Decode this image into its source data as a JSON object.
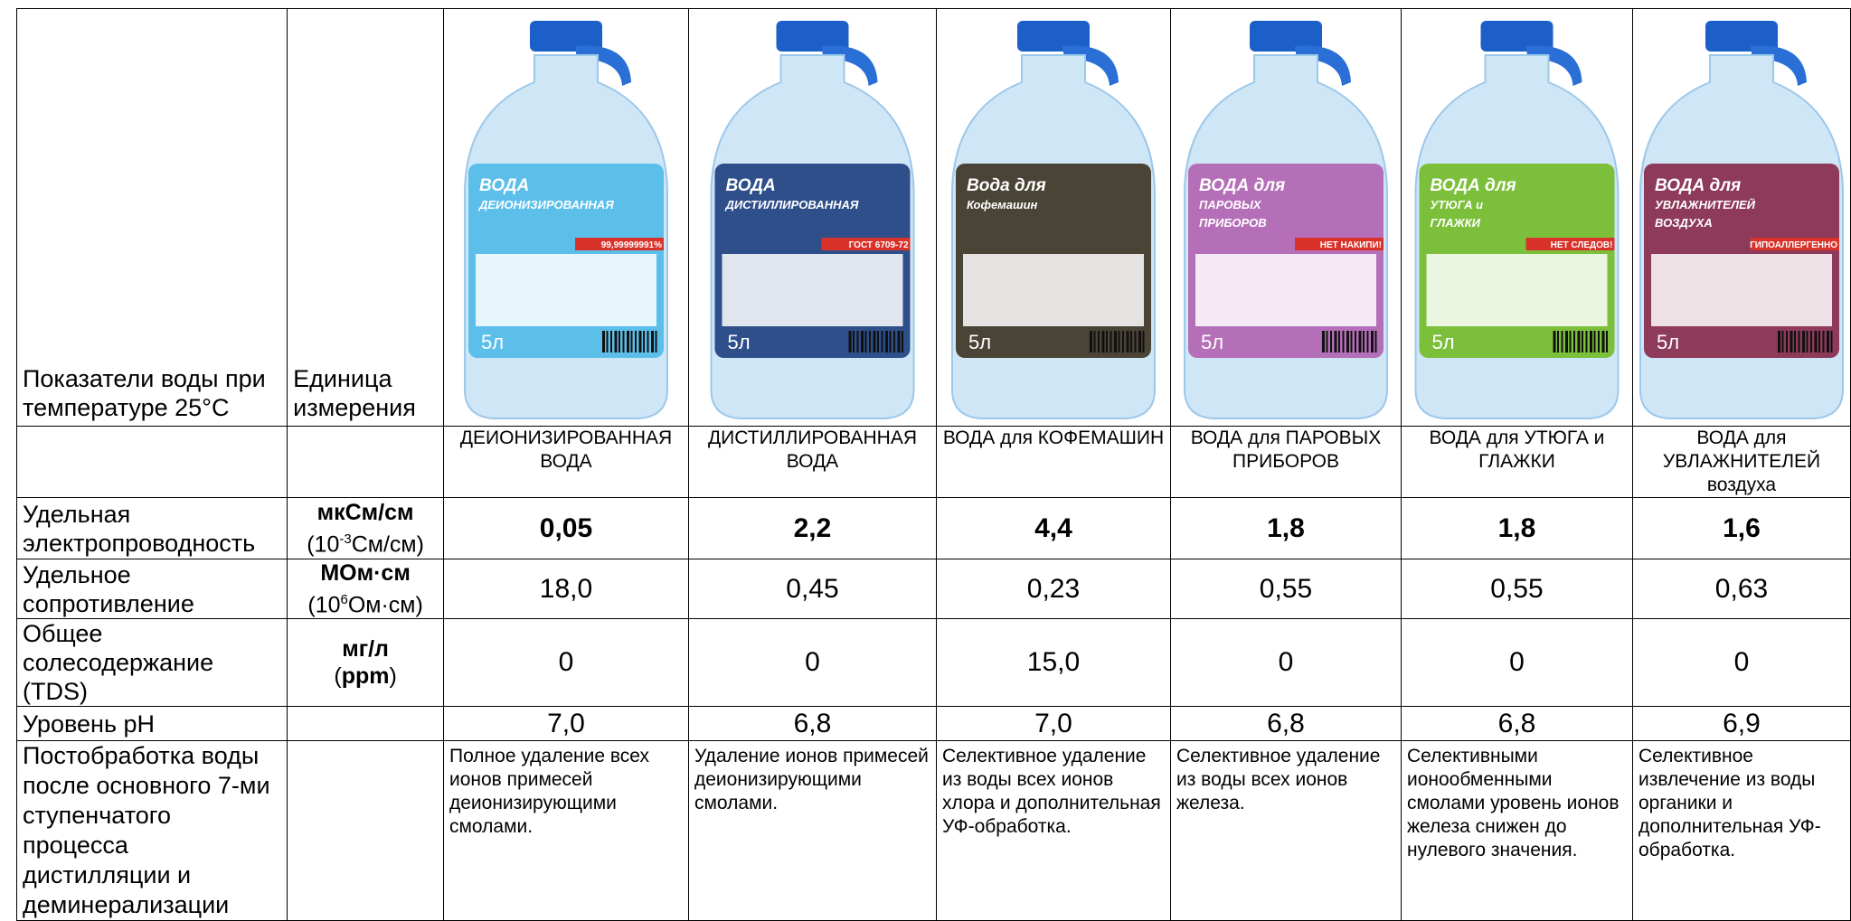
{
  "table": {
    "corner_label": "Показатели воды при температуре 25°C",
    "unit_header": "Единица измерения",
    "products": [
      {
        "name": "ДЕИОНИЗИРОВАННАЯ ВОДА",
        "label_lines": [
          "ВОДА",
          "ДЕИОНИЗИРОВАННАЯ"
        ],
        "badge": "99,99999991%",
        "volume": "5л",
        "color": "#5bbfea"
      },
      {
        "name": "ДИСТИЛЛИРОВАННАЯ ВОДА",
        "label_lines": [
          "ВОДА",
          "ДИСТИЛЛИРОВАННАЯ"
        ],
        "badge": "ГОСТ 6709-72",
        "volume": "5л",
        "color": "#2f4f8a"
      },
      {
        "name": "ВОДА для КОФЕМАШИН",
        "label_lines": [
          "Вода для",
          "Кофемашин"
        ],
        "volume": "5л",
        "color": "#4a4436"
      },
      {
        "name": "ВОДА для ПАРОВЫХ ПРИБОРОВ",
        "label_lines": [
          "ВОДА для",
          "ПАРОВЫХ",
          "ПРИБОРОВ"
        ],
        "badge": "НЕТ НАКИПИ!",
        "volume": "5л",
        "color": "#b56fb8"
      },
      {
        "name": "ВОДА для УТЮГА и ГЛАЖКИ",
        "label_lines": [
          "ВОДА для",
          "УТЮГА и",
          "ГЛАЖКИ"
        ],
        "badge": "НЕТ СЛЕДОВ!",
        "volume": "5л",
        "color": "#7cbf3a"
      },
      {
        "name": "ВОДА для УВЛАЖНИТЕЛЕЙ воздуха",
        "label_lines": [
          "ВОДА для",
          "УВЛАЖНИТЕЛЕЙ",
          "ВОЗДУХА"
        ],
        "badge": "ГИПОАЛЛЕРГЕННО",
        "volume": "5л",
        "color": "#8e3a5a"
      }
    ],
    "rows": [
      {
        "label": "Удельная электропроводность",
        "unit": "мкСм/см",
        "unit_parts": [
          "(10",
          "-3",
          "См/см)"
        ],
        "bold": true,
        "values": [
          "0,05",
          "2,2",
          "4,4",
          "1,8",
          "1,8",
          "1,6"
        ]
      },
      {
        "label": "Удельное сопротивление",
        "unit": "МОм·см",
        "unit_parts": [
          "(10",
          "6",
          "Ом·см)"
        ],
        "bold": false,
        "values": [
          "18,0",
          "0,45",
          "0,23",
          "0,55",
          "0,55",
          "0,63"
        ]
      },
      {
        "label": "Общее солесодержание (TDS)",
        "unit": "мг/л",
        "unit_parts": [
          "(",
          "ppm",
          ")"
        ],
        "bold": false,
        "values": [
          "0",
          "0",
          "15,0",
          "0",
          "0",
          "0"
        ]
      },
      {
        "label": "Уровень pH",
        "bold": false,
        "values": [
          "7,0",
          "6,8",
          "7,0",
          "6,8",
          "6,8",
          "6,9"
        ]
      },
      {
        "label": "Постобработка воды после основного 7-ми ступенчатого процесса дистилляции и деминерализации",
        "descriptive": true,
        "values": [
          "Полное удаление всех ионов примесей деионизирующими смолами.",
          "Удаление ионов примесей деионизирующими смолами.",
          "Селективное удаление из воды всех ионов хлора и дополнительная УФ-обработка.",
          "Селективное удаление из воды всех ионов железа.",
          "Селективными ионообменными смолами уровень ионов железа снижен до нулевого значения.",
          "Селективное извлечение из воды органики и дополнительная УФ-обработка."
        ]
      }
    ]
  }
}
